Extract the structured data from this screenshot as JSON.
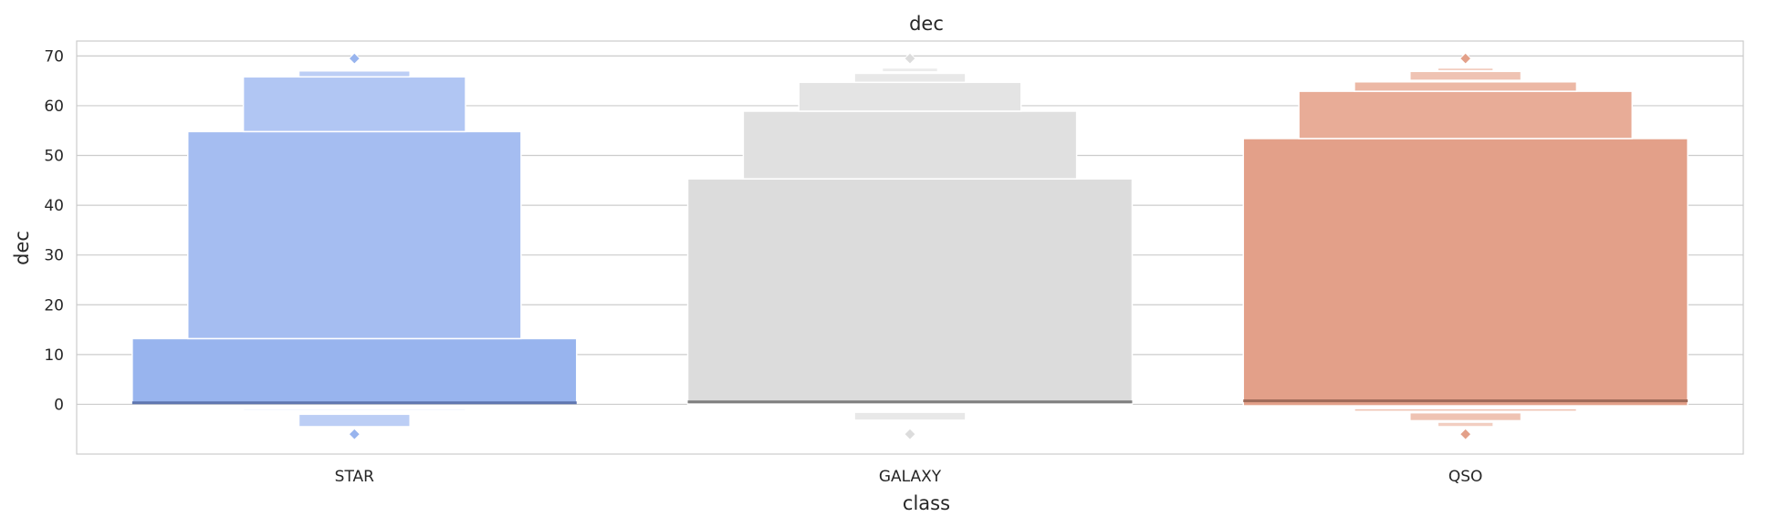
{
  "chart_data": {
    "type": "boxen",
    "title": "dec",
    "xlabel": "class",
    "ylabel": "dec",
    "ylim": [
      -10,
      73
    ],
    "yticks": [
      0,
      10,
      20,
      30,
      40,
      50,
      60,
      70
    ],
    "grid": true,
    "categories": [
      "STAR",
      "GALAXY",
      "QSO"
    ],
    "colors": {
      "STAR": [
        "#98b4ee",
        "#a5bdf1",
        "#b1c6f3",
        "#bccef5",
        "#c6d5f7",
        "#d0dcf9"
      ],
      "GALAXY": [
        "#dcdcdc",
        "#e0e0e0",
        "#e4e4e4",
        "#e8e8e8",
        "#ececec",
        "#f0f0f0"
      ],
      "QSO": [
        "#e3a089",
        "#e8ac97",
        "#ecb8a5",
        "#efc3b3",
        "#f2cec1",
        "#f5d8ce"
      ]
    },
    "median_colors": {
      "STAR": "#5f76b0",
      "GALAXY": "#7f7f7f",
      "QSO": "#9e6a58"
    },
    "boxes": [
      {
        "category": "STAR",
        "median": 0.3,
        "levels": [
          {
            "low": 0.3,
            "high": 13.2
          },
          {
            "low": 13.2,
            "high": 54.8
          },
          {
            "low": 54.8,
            "high": 65.8
          },
          {
            "low": 65.8,
            "high": 67.0
          }
        ],
        "lower_levels": [
          {
            "low": -1.2,
            "high": -0.9
          },
          {
            "low": -4.5,
            "high": -2.0
          }
        ],
        "outliers": [
          69.5,
          -6.0
        ]
      },
      {
        "category": "GALAXY",
        "median": 0.5,
        "levels": [
          {
            "low": 0.0,
            "high": 45.3
          },
          {
            "low": 45.3,
            "high": 58.9
          },
          {
            "low": 58.9,
            "high": 64.7
          },
          {
            "low": 64.7,
            "high": 66.5
          },
          {
            "low": 66.8,
            "high": 67.6
          }
        ],
        "lower_levels": [
          {
            "low": -1.2,
            "high": -1.0
          },
          {
            "low": -3.2,
            "high": -1.6
          }
        ],
        "outliers": [
          69.5,
          -6.0
        ]
      },
      {
        "category": "QSO",
        "median": 0.7,
        "levels": [
          {
            "low": -0.3,
            "high": 53.4
          },
          {
            "low": 53.4,
            "high": 62.9
          },
          {
            "low": 62.9,
            "high": 64.8
          },
          {
            "low": 65.1,
            "high": 66.9
          },
          {
            "low": 67.0,
            "high": 67.6
          }
        ],
        "lower_levels": [
          {
            "low": -1.4,
            "high": -0.9
          },
          {
            "low": -3.3,
            "high": -1.7
          },
          {
            "low": -4.5,
            "high": -3.6
          }
        ],
        "outliers": [
          69.5,
          -6.0
        ]
      }
    ]
  }
}
